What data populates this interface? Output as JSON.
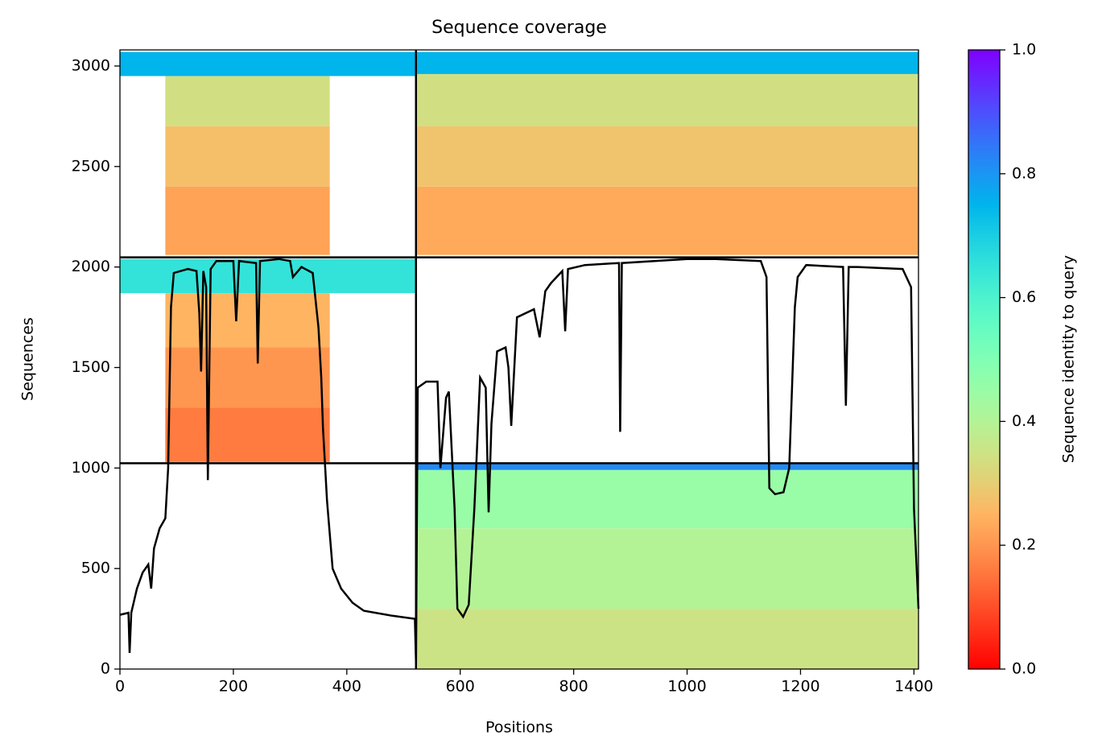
{
  "chart_data": {
    "type": "coverage",
    "title": "Sequence coverage",
    "x_label": "Positions",
    "y_label": "Sequences",
    "colorbar_label": "Sequence identity to query",
    "colormap": "rainbow_r",
    "xlim": [
      0,
      1408
    ],
    "ylim": [
      0,
      3080
    ],
    "xticks": [
      0,
      200,
      400,
      600,
      800,
      1000,
      1200,
      1400
    ],
    "yticks": [
      0,
      500,
      1000,
      1500,
      2000,
      2500,
      3000
    ],
    "clim": [
      0,
      1
    ],
    "cticks": [
      {
        "value": 0,
        "label": "0.0"
      },
      {
        "value": 0.2,
        "label": "0.2"
      },
      {
        "value": 0.4,
        "label": "0.4"
      },
      {
        "value": 0.6,
        "label": "0.6"
      },
      {
        "value": 0.8,
        "label": "0.8"
      },
      {
        "value": 1,
        "label": "1.0"
      }
    ],
    "blocks": [
      {
        "x": [
          0,
          522
        ],
        "y": [
          2950,
          3070
        ],
        "value": 0.75
      },
      {
        "x": [
          80,
          370
        ],
        "y": [
          2700,
          2950
        ],
        "value": 0.34
      },
      {
        "x": [
          80,
          370
        ],
        "y": [
          2400,
          2700
        ],
        "value": 0.27
      },
      {
        "x": [
          80,
          370
        ],
        "y": [
          2060,
          2400
        ],
        "value": 0.22
      },
      {
        "x": [
          522,
          1408
        ],
        "y": [
          2960,
          3070
        ],
        "value": 0.75
      },
      {
        "x": [
          522,
          1408
        ],
        "y": [
          2700,
          2960
        ],
        "value": 0.34
      },
      {
        "x": [
          522,
          1408
        ],
        "y": [
          2400,
          2700
        ],
        "value": 0.28
      },
      {
        "x": [
          522,
          1408
        ],
        "y": [
          2060,
          2400
        ],
        "value": 0.23
      },
      {
        "x": [
          0,
          522
        ],
        "y": [
          1870,
          2040
        ],
        "value": 0.65
      },
      {
        "x": [
          80,
          370
        ],
        "y": [
          1600,
          1870
        ],
        "value": 0.25
      },
      {
        "x": [
          80,
          370
        ],
        "y": [
          1300,
          1600
        ],
        "value": 0.2
      },
      {
        "x": [
          80,
          370
        ],
        "y": [
          1030,
          1300
        ],
        "value": 0.16
      },
      {
        "x": [
          522,
          1408
        ],
        "y": [
          990,
          1024
        ],
        "value": 0.82
      },
      {
        "x": [
          522,
          1408
        ],
        "y": [
          700,
          990
        ],
        "value": 0.45
      },
      {
        "x": [
          522,
          1408
        ],
        "y": [
          300,
          700
        ],
        "value": 0.4
      },
      {
        "x": [
          522,
          1408
        ],
        "y": [
          0,
          300
        ],
        "value": 0.35
      }
    ],
    "dividers": {
      "x": [
        522
      ],
      "y": [
        1024,
        2048
      ]
    },
    "line": {
      "color": "#000000",
      "x": [
        0,
        15,
        17,
        20,
        30,
        40,
        50,
        55,
        60,
        70,
        80,
        85,
        90,
        95,
        120,
        135,
        140,
        143,
        147,
        152,
        155,
        160,
        170,
        200,
        205,
        210,
        240,
        243,
        247,
        280,
        300,
        305,
        320,
        340,
        350,
        355,
        358,
        362,
        365,
        375,
        390,
        410,
        430,
        480,
        520,
        522,
        525,
        540,
        560,
        565,
        575,
        580,
        590,
        595,
        605,
        615,
        625,
        635,
        645,
        650,
        655,
        665,
        680,
        685,
        690,
        700,
        730,
        740,
        750,
        760,
        780,
        785,
        790,
        820,
        880,
        882,
        885,
        1000,
        1050,
        1130,
        1140,
        1145,
        1155,
        1170,
        1180,
        1190,
        1195,
        1210,
        1275,
        1280,
        1285,
        1300,
        1380,
        1395,
        1400,
        1408
      ],
      "y": [
        270,
        280,
        80,
        280,
        400,
        480,
        520,
        400,
        600,
        700,
        750,
        1000,
        1800,
        1970,
        1990,
        1980,
        1770,
        1480,
        1980,
        1900,
        940,
        1990,
        2030,
        2030,
        1730,
        2030,
        2020,
        1520,
        2030,
        2040,
        2030,
        1950,
        2000,
        1970,
        1700,
        1450,
        1200,
        1000,
        840,
        500,
        400,
        330,
        290,
        265,
        250,
        30,
        1400,
        1430,
        1430,
        1000,
        1350,
        1380,
        800,
        300,
        260,
        320,
        800,
        1450,
        1400,
        780,
        1220,
        1580,
        1600,
        1500,
        1210,
        1750,
        1790,
        1650,
        1880,
        1920,
        1980,
        1680,
        1990,
        2010,
        2020,
        1180,
        2020,
        2040,
        2040,
        2030,
        1950,
        900,
        870,
        880,
        1000,
        1800,
        1950,
        2010,
        2000,
        1310,
        2000,
        2000,
        1990,
        1900,
        800,
        300
      ]
    }
  }
}
